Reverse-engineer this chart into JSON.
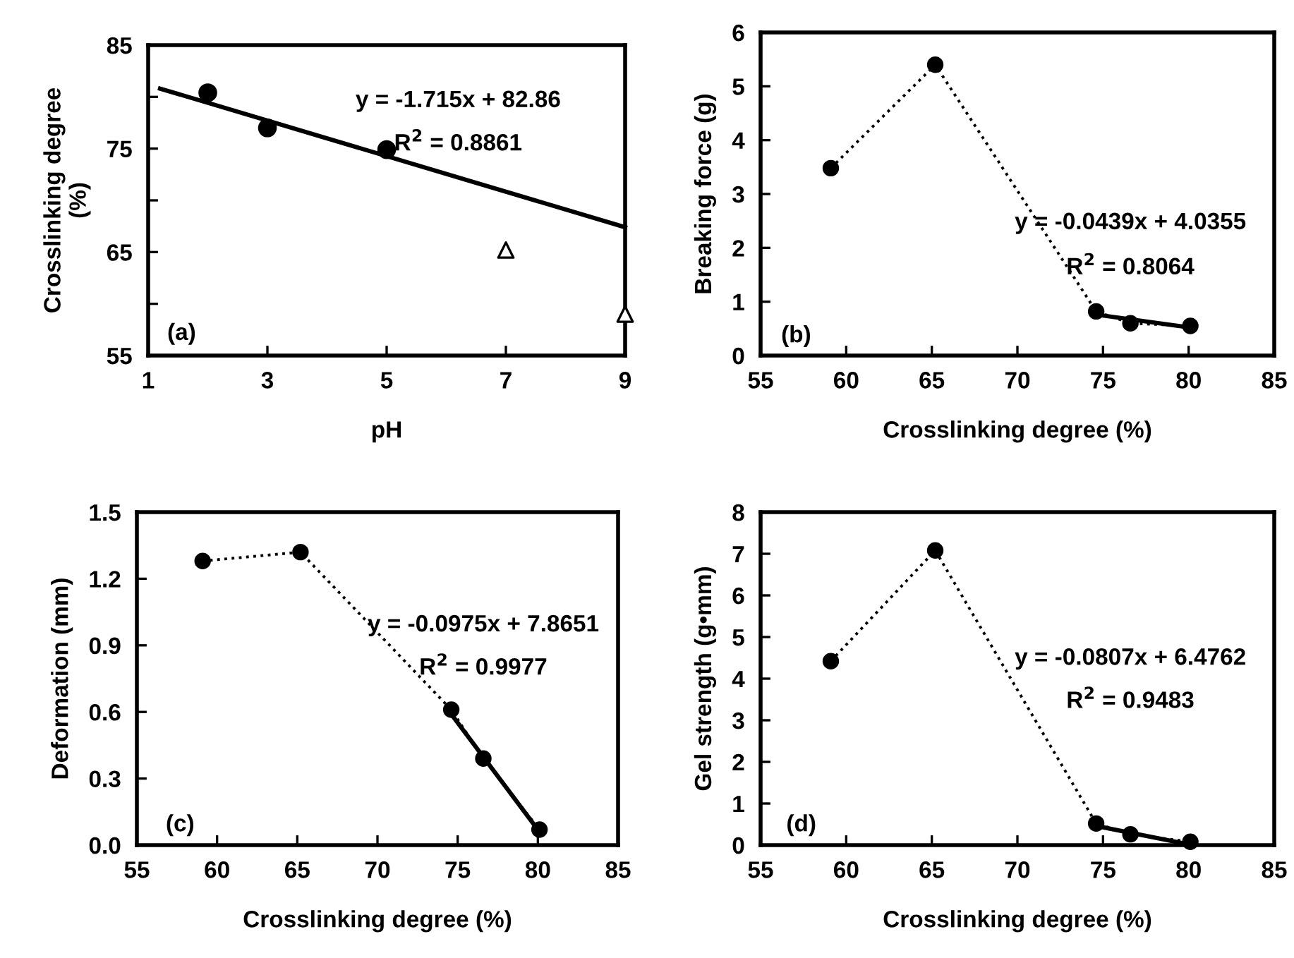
{
  "chart_data": [
    {
      "type": "scatter",
      "xlabel": "pH",
      "ylabel": "Crosslinking degree\n(%)",
      "xlim": [
        1,
        9
      ],
      "xticks": [
        1,
        3,
        5,
        7,
        9
      ],
      "ylim": [
        55,
        85
      ],
      "yticks": [
        55,
        {
          "value": 60,
          "label": null
        },
        65,
        {
          "value": 70,
          "label": null
        },
        75,
        {
          "value": 80,
          "label": null
        },
        85
      ],
      "grid": false,
      "annotations": [
        "y = -1.715x + 82.86",
        "R$^{2}$ = 0.8861",
        "(a)"
      ],
      "series": [
        {
          "marker": "circle",
          "color": "#000000",
          "x": [
            2,
            3,
            5
          ],
          "values": [
            80.4,
            77.0,
            74.9
          ]
        },
        {
          "marker": "triangle",
          "color": "#000000",
          "x": [
            7,
            9
          ],
          "values": [
            65.2,
            59.0
          ]
        },
        {
          "type": "line",
          "line_style": "solid",
          "marker": "none",
          "color": "#000000",
          "x": [
            1.2,
            9
          ],
          "values": [
            80.8,
            67.4
          ]
        }
      ]
    },
    {
      "type": "line",
      "xlabel": "Crosslinking degree (%)",
      "ylabel": "Breaking force (g)",
      "xlim": [
        55,
        85
      ],
      "xticks": [
        55,
        60,
        65,
        70,
        75,
        80,
        85
      ],
      "ylim": [
        0,
        6
      ],
      "yticks": [
        0,
        1,
        2,
        3,
        4,
        5,
        6
      ],
      "grid": false,
      "annotations": [
        "y = -0.0439x + 4.0355",
        "R$^{2}$ = 0.8064",
        "(b)"
      ],
      "series": [
        {
          "line_style": "dotted",
          "marker": "circle",
          "color": "#000000",
          "x": [
            59.1,
            65.2,
            74.6,
            76.6,
            80.1
          ],
          "values": [
            3.48,
            5.4,
            0.82,
            0.6,
            0.55
          ]
        },
        {
          "line_style": "solid",
          "marker": "none",
          "color": "#000000",
          "x": [
            74.6,
            80.1
          ],
          "values": [
            0.76,
            0.52
          ]
        }
      ]
    },
    {
      "type": "line",
      "xlabel": "Crosslinking degree (%)",
      "ylabel": "Deformation (mm)",
      "xlim": [
        55,
        85
      ],
      "xticks": [
        55,
        60,
        65,
        70,
        75,
        80,
        85
      ],
      "ylim": [
        0,
        1.5
      ],
      "yticks": [
        {
          "value": 0,
          "label": "0.0"
        },
        0.3,
        0.6,
        0.9,
        1.2,
        1.5
      ],
      "grid": false,
      "annotations": [
        "y = -0.0975x + 7.8651",
        "R$^{2}$ = 0.9977",
        "(c)"
      ],
      "series": [
        {
          "line_style": "dotted",
          "marker": "circle",
          "color": "#000000",
          "x": [
            59.1,
            65.2,
            74.6,
            76.6,
            80.1
          ],
          "values": [
            1.28,
            1.32,
            0.61,
            0.39,
            0.07
          ]
        },
        {
          "line_style": "solid",
          "marker": "none",
          "color": "#000000",
          "x": [
            74.6,
            80.1
          ],
          "values": [
            0.59,
            0.06
          ]
        }
      ]
    },
    {
      "type": "line",
      "xlabel": "Crosslinking degree (%)",
      "ylabel": "Gel strength (g•mm)",
      "xlim": [
        55,
        85
      ],
      "xticks": [
        55,
        60,
        65,
        70,
        75,
        80,
        85
      ],
      "ylim": [
        0,
        8
      ],
      "yticks": [
        0,
        1,
        2,
        3,
        4,
        5,
        6,
        7,
        8
      ],
      "grid": false,
      "annotations": [
        "y = -0.0807x + 6.4762",
        "R$^{2}$ = 0.9483",
        "(d)"
      ],
      "series": [
        {
          "line_style": "dotted",
          "marker": "circle",
          "color": "#000000",
          "x": [
            59.1,
            65.2,
            74.6,
            76.6,
            80.1
          ],
          "values": [
            4.42,
            7.08,
            0.52,
            0.26,
            0.08
          ]
        },
        {
          "line_style": "solid",
          "marker": "none",
          "color": "#000000",
          "x": [
            74.6,
            80.1
          ],
          "values": [
            0.46,
            0.01
          ]
        }
      ]
    }
  ]
}
